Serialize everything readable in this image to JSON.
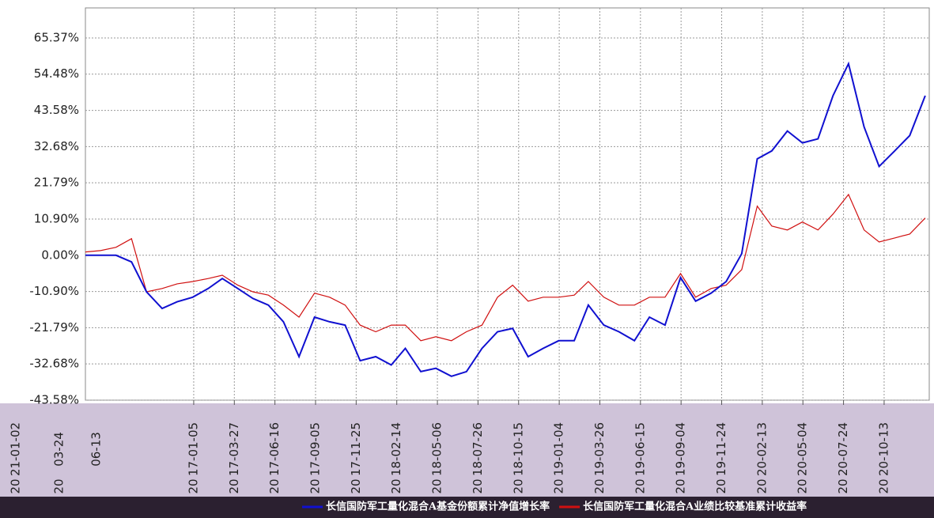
{
  "chart_data": {
    "type": "line",
    "x": [
      "2016-06-03",
      "2016-07-03",
      "2016-08-03",
      "2016-09-03",
      "2016-10-03",
      "2016-11-03",
      "2016-12-03",
      "2017-01-03",
      "2017-02-03",
      "2017-03-03",
      "2017-04-03",
      "2017-05-03",
      "2017-06-03",
      "2017-07-03",
      "2017-08-03",
      "2017-09-03",
      "2017-10-03",
      "2017-11-03",
      "2017-12-03",
      "2018-01-03",
      "2018-02-03",
      "2018-03-03",
      "2018-04-03",
      "2018-05-03",
      "2018-06-03",
      "2018-07-03",
      "2018-08-03",
      "2018-09-03",
      "2018-10-03",
      "2018-11-03",
      "2018-12-03",
      "2019-01-03",
      "2019-02-03",
      "2019-03-03",
      "2019-04-03",
      "2019-05-03",
      "2019-06-03",
      "2019-07-03",
      "2019-08-03",
      "2019-09-03",
      "2019-10-03",
      "2019-11-03",
      "2019-12-03",
      "2020-01-03",
      "2020-02-03",
      "2020-03-03",
      "2020-04-03",
      "2020-05-03",
      "2020-06-03",
      "2020-07-03",
      "2020-08-03",
      "2020-09-03",
      "2020-10-03",
      "2020-11-03",
      "2020-12-03",
      "2021-01-03"
    ],
    "series": [
      {
        "name": "长信国防军工量化混合A基金份额累计净值增长率",
        "color": "#1010d0",
        "values": [
          0,
          0,
          0,
          -2,
          -11,
          -16,
          -14,
          -12.6,
          -10,
          -7,
          -10,
          -13,
          -15,
          -20,
          -30.5,
          -18.6,
          -20,
          -21,
          -31.7,
          -30.5,
          -33,
          -28,
          -35,
          -34,
          -36.4,
          -35,
          -28,
          -23,
          -22,
          -30.5,
          -28,
          -25.7,
          -25.7,
          -15,
          -21,
          -23,
          -25.7,
          -18.6,
          -21,
          -6.7,
          -13.8,
          -11.4,
          -7.9,
          0.5,
          29,
          31.4,
          37.4,
          33.8,
          35,
          48,
          57.6,
          38.6,
          26.7,
          31.4,
          36,
          48
        ]
      },
      {
        "name": "长信国防军工量化混合A业绩比较基准累计收益率",
        "color": "#d01010",
        "values": [
          1,
          1.4,
          2.4,
          5,
          -11,
          -10,
          -8.6,
          -7.9,
          -7,
          -6,
          -9,
          -11,
          -12,
          -15,
          -18.6,
          -11.4,
          -12.6,
          -15,
          -21,
          -23,
          -21,
          -21,
          -25.7,
          -24.5,
          -25.7,
          -23,
          -21,
          -12.6,
          -9,
          -13.8,
          -12.6,
          -12.6,
          -12,
          -7.9,
          -12.6,
          -15,
          -15,
          -12.6,
          -12.6,
          -5.5,
          -12.6,
          -10,
          -9,
          -4.3,
          14.8,
          8.8,
          7.6,
          10,
          7.6,
          12.4,
          18.3,
          7.6,
          4,
          5.2,
          6.4,
          11.2
        ]
      }
    ],
    "xlim": [
      "2016-06-03",
      "2021-01-11"
    ],
    "xticks": [
      {
        "value": "2017-01-05",
        "label": [
          "20",
          "17-01-05"
        ]
      },
      {
        "value": "2017-03-27",
        "label": [
          "20",
          "17-03-27"
        ]
      },
      {
        "value": "2017-06-16",
        "label": [
          "20",
          "17-06-16"
        ]
      },
      {
        "value": "2017-09-05",
        "label": [
          "20",
          "17-09-05"
        ]
      },
      {
        "value": "2017-11-25",
        "label": [
          "20",
          "17-11-25"
        ]
      },
      {
        "value": "2018-02-14",
        "label": [
          "20",
          "18-02-14"
        ]
      },
      {
        "value": "2018-05-06",
        "label": [
          "20",
          "18-05-06"
        ]
      },
      {
        "value": "2018-07-26",
        "label": [
          "20",
          "18-07-26"
        ]
      },
      {
        "value": "2018-10-15",
        "label": [
          "20",
          "18-10-15"
        ]
      },
      {
        "value": "2019-01-04",
        "label": [
          "20",
          "19-01-04"
        ]
      },
      {
        "value": "2019-03-26",
        "label": [
          "20",
          "19-03-26"
        ]
      },
      {
        "value": "2019-06-15",
        "label": [
          "20",
          "19-06-15"
        ]
      },
      {
        "value": "2019-09-04",
        "label": [
          "20",
          "19-09-04"
        ]
      },
      {
        "value": "2019-11-24",
        "label": [
          "20",
          "19-11-24"
        ]
      },
      {
        "value": "2020-02-13",
        "label": [
          "20",
          "20-02-13"
        ]
      },
      {
        "value": "2020-05-04",
        "label": [
          "20",
          "20-05-04"
        ]
      },
      {
        "value": "2020-07-24",
        "label": [
          "20",
          "20-07-24"
        ]
      },
      {
        "value": "2020-10-13",
        "label": [
          "20",
          "20-10-13"
        ]
      }
    ],
    "x_fragments": [
      "21-01-02",
      "03-24",
      "06-13",
      "20",
      "20"
    ],
    "ylim": [
      -43.58,
      74.4
    ],
    "yticks": [
      {
        "value": -43.58,
        "label": "-43.58%"
      },
      {
        "value": -32.68,
        "label": "-32.68%"
      },
      {
        "value": -21.79,
        "label": "-21.79%"
      },
      {
        "value": -10.9,
        "label": "-10.90%"
      },
      {
        "value": 0,
        "label": "0.00%"
      },
      {
        "value": 10.9,
        "label": "10.90%"
      },
      {
        "value": 21.79,
        "label": "21.79%"
      },
      {
        "value": 32.68,
        "label": "32.68%"
      },
      {
        "value": 43.58,
        "label": "43.58%"
      },
      {
        "value": 54.48,
        "label": "54.48%"
      },
      {
        "value": 65.37,
        "label": "65.37%"
      }
    ],
    "grid": true
  }
}
